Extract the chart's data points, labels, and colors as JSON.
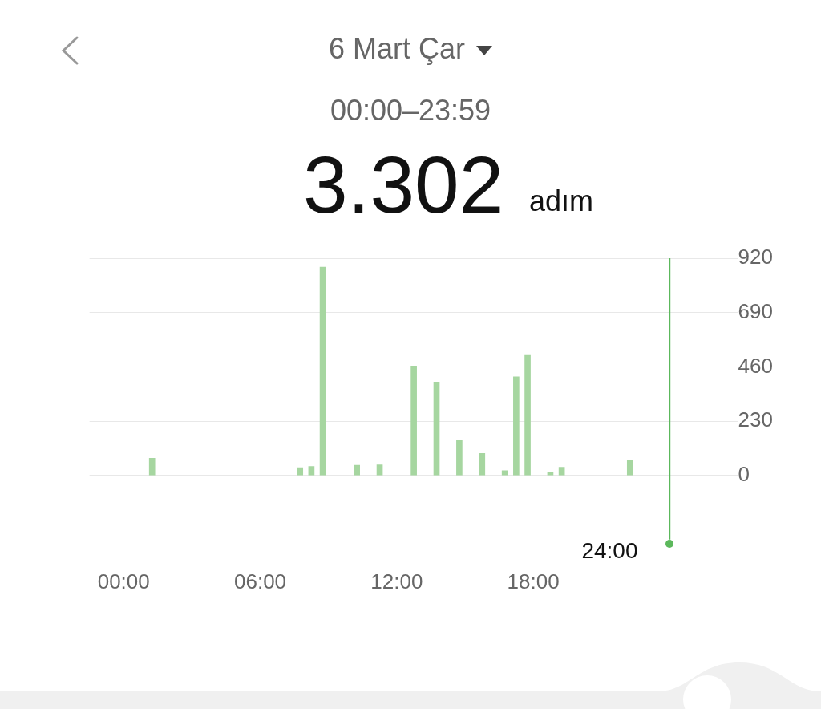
{
  "chart_data": {
    "type": "bar",
    "title": "6 Mart Çar",
    "subtitle": "00:00–23:59",
    "annotations": [
      "3.302",
      "adım"
    ],
    "x": [
      1.25,
      7.75,
      8.25,
      8.75,
      10.25,
      11.25,
      12.75,
      13.75,
      14.75,
      15.75,
      16.75,
      17.25,
      17.75,
      18.75,
      19.25,
      22.25
    ],
    "series": [
      {
        "color": "#a6d6a0",
        "values": [
          73,
          33,
          38,
          882,
          43,
          45,
          464,
          396,
          151,
          93,
          20,
          418,
          509,
          13,
          35,
          66
        ]
      }
    ],
    "xlim": [
      -1.5,
      27
    ],
    "xticks": [
      {
        "value": 0,
        "label": "00:00"
      },
      {
        "value": 6,
        "label": "06:00"
      },
      {
        "value": 12,
        "label": "12:00"
      },
      {
        "value": 18,
        "label": "18:00"
      }
    ],
    "ylim": [
      0,
      920
    ],
    "yticks": [
      0,
      230,
      460,
      690,
      920
    ],
    "ref_lines": [
      {
        "axis": "x",
        "value": 24,
        "label": "24:00",
        "color": "#5cb85c"
      }
    ],
    "grid": "y",
    "legend": false
  }
}
